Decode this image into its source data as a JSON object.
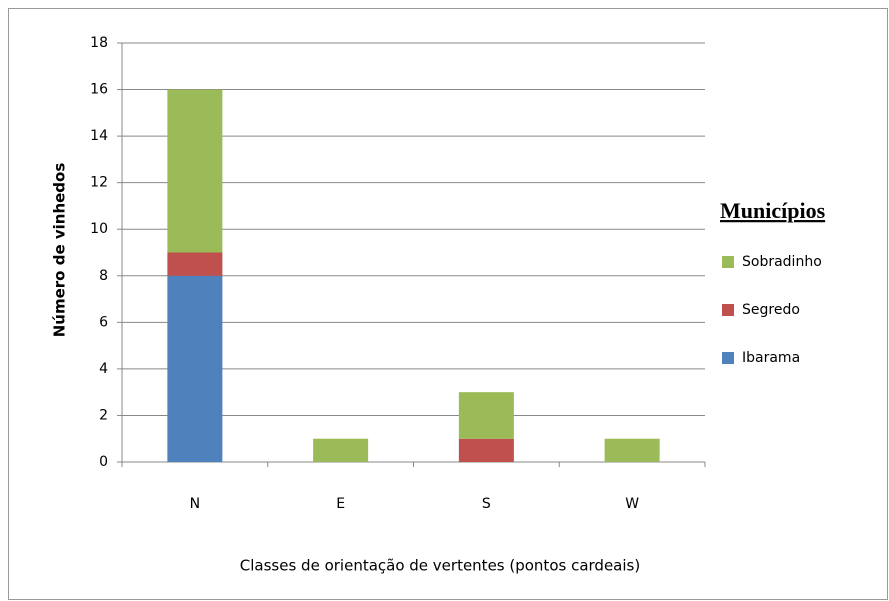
{
  "chart_data": {
    "type": "bar",
    "stacked": true,
    "x_label": "Classes de orientação de vertentes (pontos cardeais)",
    "y_label": "Número de vinhedos",
    "legend_title": "Municípios",
    "categories": [
      "N",
      "E",
      "S",
      "W"
    ],
    "series": [
      {
        "name": "Ibarama",
        "color": "#4f81bd",
        "values": [
          8,
          0,
          0,
          0
        ]
      },
      {
        "name": "Segredo",
        "color": "#c0504d",
        "values": [
          1,
          0,
          1,
          0
        ]
      },
      {
        "name": "Sobradinho",
        "color": "#9bbb59",
        "values": [
          7,
          1,
          2,
          1
        ]
      }
    ],
    "ylim": [
      0,
      18
    ],
    "yticks": [
      0,
      2,
      4,
      6,
      8,
      10,
      12,
      14,
      16,
      18
    ],
    "grid": true,
    "legend": "right"
  }
}
